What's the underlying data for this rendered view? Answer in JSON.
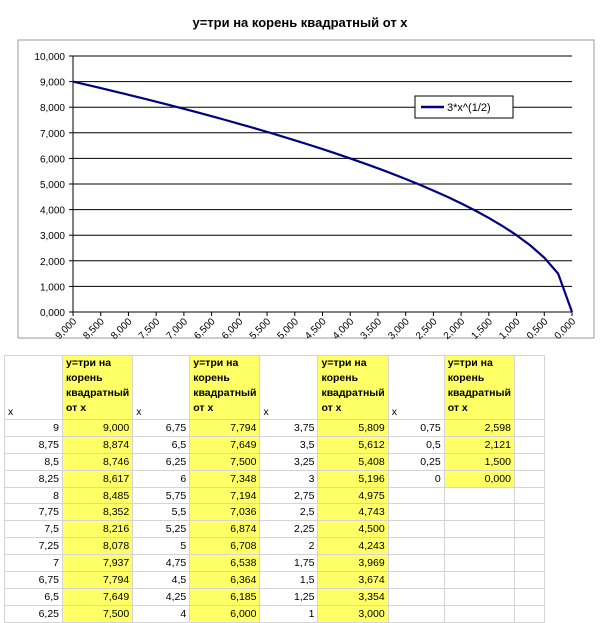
{
  "chart_data": {
    "type": "line",
    "title": "y=три на корень квадратный от x",
    "x_reversed": true,
    "xlim": [
      9,
      0
    ],
    "ylim": [
      0,
      10
    ],
    "grid": "horizontal",
    "legend_position": "top-right",
    "x_ticks": [
      "9,000",
      "8,500",
      "8,000",
      "7,500",
      "7,000",
      "6,500",
      "6,000",
      "5,500",
      "5,000",
      "4,500",
      "4,000",
      "3,500",
      "3,000",
      "2,500",
      "2,000",
      "1,500",
      "1,000",
      "0,500",
      "0,000"
    ],
    "y_ticks": [
      "0,000",
      "1,000",
      "2,000",
      "3,000",
      "4,000",
      "5,000",
      "6,000",
      "7,000",
      "8,000",
      "9,000",
      "10,000"
    ],
    "series": [
      {
        "name": "3*x^(1/2)",
        "color": "#000080",
        "x": [
          9,
          8.75,
          8.5,
          8.25,
          8,
          7.75,
          7.5,
          7.25,
          7,
          6.75,
          6.5,
          6.25,
          6,
          5.75,
          5.5,
          5.25,
          5,
          4.75,
          4.5,
          4.25,
          4,
          3.75,
          3.5,
          3.25,
          3,
          2.75,
          2.5,
          2.25,
          2,
          1.75,
          1.5,
          1.25,
          1,
          0.75,
          0.5,
          0.25,
          0
        ],
        "y": [
          9,
          8.874,
          8.746,
          8.617,
          8.485,
          8.352,
          8.216,
          8.078,
          7.937,
          7.794,
          7.649,
          7.5,
          7.348,
          7.194,
          7.036,
          6.874,
          6.708,
          6.538,
          6.364,
          6.185,
          6,
          5.809,
          5.612,
          5.408,
          5.196,
          4.975,
          4.743,
          4.5,
          4.243,
          3.969,
          3.674,
          3.354,
          3,
          2.598,
          2.121,
          1.5,
          0
        ]
      }
    ]
  },
  "table": {
    "x_header": "x",
    "y_header": "y=три на корень квадратный от x",
    "blocks": [
      {
        "x": [
          "9",
          "8,75",
          "8,5",
          "8,25",
          "8",
          "7,75",
          "7,5",
          "7,25",
          "7",
          "6,75",
          "6,5",
          "6,25"
        ],
        "y": [
          "9,000",
          "8,874",
          "8,746",
          "8,617",
          "8,485",
          "8,352",
          "8,216",
          "8,078",
          "7,937",
          "7,794",
          "7,649",
          "7,500"
        ]
      },
      {
        "x": [
          "6,75",
          "6,5",
          "6,25",
          "6",
          "5,75",
          "5,5",
          "5,25",
          "5",
          "4,75",
          "4,5",
          "4,25",
          "4"
        ],
        "y": [
          "7,794",
          "7,649",
          "7,500",
          "7,348",
          "7,194",
          "7,036",
          "6,874",
          "6,708",
          "6,538",
          "6,364",
          "6,185",
          "6,000"
        ]
      },
      {
        "x": [
          "3,75",
          "3,5",
          "3,25",
          "3",
          "2,75",
          "2,5",
          "2,25",
          "2",
          "1,75",
          "1,5",
          "1,25",
          "1"
        ],
        "y": [
          "5,809",
          "5,612",
          "5,408",
          "5,196",
          "4,975",
          "4,743",
          "4,500",
          "4,243",
          "3,969",
          "3,674",
          "3,354",
          "3,000"
        ]
      },
      {
        "x": [
          "0,75",
          "0,5",
          "0,25",
          "0"
        ],
        "y": [
          "2,598",
          "2,121",
          "1,500",
          "0,000"
        ]
      }
    ]
  }
}
